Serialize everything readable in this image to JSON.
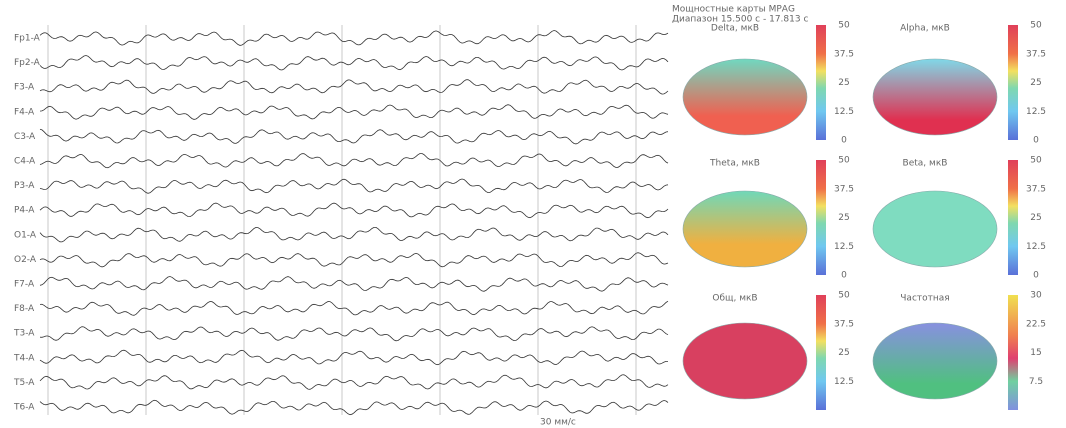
{
  "header": {
    "title": "Мощностные карты МРАG",
    "range": "Диапазон 15.500 с - 17.813 с"
  },
  "channels": [
    "Fp1-A",
    "Fp2-A",
    "F3-A",
    "F4-A",
    "C3-A",
    "C4-A",
    "P3-A",
    "P4-A",
    "O1-A",
    "O2-A",
    "F7-A",
    "F8-A",
    "T3-A",
    "T4-A",
    "T5-A",
    "T6-A"
  ],
  "maps": [
    {
      "title": "Delta, мкВ",
      "scale": [
        "50",
        "37.5",
        "25",
        "12.5",
        "0"
      ]
    },
    {
      "title": "Alpha, мкВ",
      "scale": [
        "50",
        "37.5",
        "25",
        "12.5",
        "0"
      ]
    },
    {
      "title": "Theta, мкВ",
      "scale": [
        "50",
        "37.5",
        "25",
        "12.5",
        "0"
      ]
    },
    {
      "title": "Beta, мкВ",
      "scale": [
        "50",
        "37.5",
        "25",
        "12.5",
        "0"
      ]
    },
    {
      "title": "Общ, мкВ",
      "scale": [
        "50",
        "37.5",
        "25",
        "12.5"
      ]
    },
    {
      "title": "Частотная",
      "scale": [
        "30",
        "22.5",
        "15",
        "7.5"
      ]
    }
  ],
  "footer": "30 мм/с"
}
